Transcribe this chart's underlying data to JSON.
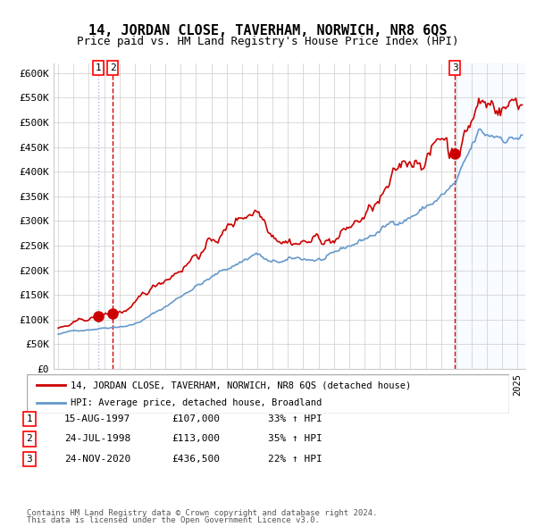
{
  "title": "14, JORDAN CLOSE, TAVERHAM, NORWICH, NR8 6QS",
  "subtitle": "Price paid vs. HM Land Registry's House Price Index (HPI)",
  "xlabel": "",
  "ylabel": "",
  "ylim": [
    0,
    620000
  ],
  "yticks": [
    0,
    50000,
    100000,
    150000,
    200000,
    250000,
    300000,
    350000,
    400000,
    450000,
    500000,
    550000,
    600000
  ],
  "ytick_labels": [
    "£0",
    "£50K",
    "£100K",
    "£150K",
    "£200K",
    "£250K",
    "£300K",
    "£350K",
    "£400K",
    "£450K",
    "£500K",
    "£550K",
    "£600K"
  ],
  "xlim_start": 1995.0,
  "xlim_end": 2025.5,
  "sale1_date": 1997.625,
  "sale1_price": 107000,
  "sale1_label": "1",
  "sale2_date": 1998.56,
  "sale2_price": 113000,
  "sale2_label": "2",
  "sale3_date": 2020.9,
  "sale3_price": 436500,
  "sale3_label": "3",
  "line_red_color": "#cc0000",
  "line_blue_color": "#6699cc",
  "dot_color": "#cc0000",
  "vline1_color_dot": "#aabbdd",
  "vline2_color_dash": "#cc0000",
  "bg_shade_color": "#ddeeff",
  "legend_line1": "14, JORDAN CLOSE, TAVERHAM, NORWICH, NR8 6QS (detached house)",
  "legend_line2": "HPI: Average price, detached house, Broadland",
  "table_entries": [
    {
      "num": "1",
      "date": "15-AUG-1997",
      "price": "£107,000",
      "pct": "33% ↑ HPI"
    },
    {
      "num": "2",
      "date": "24-JUL-1998",
      "price": "£113,000",
      "pct": "35% ↑ HPI"
    },
    {
      "num": "3",
      "date": "24-NOV-2020",
      "price": "£436,500",
      "pct": "22% ↑ HPI"
    }
  ],
  "footer1": "Contains HM Land Registry data © Crown copyright and database right 2024.",
  "footer2": "This data is licensed under the Open Government Licence v3.0.",
  "grid_color": "#cccccc",
  "background_color": "#ffffff"
}
